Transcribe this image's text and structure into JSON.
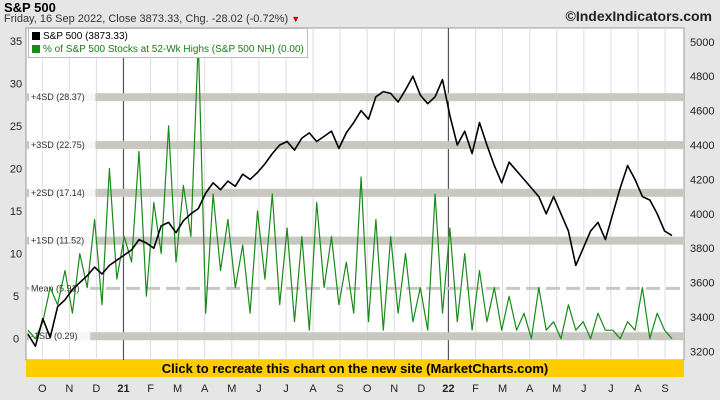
{
  "header": {
    "title": "S&P 500",
    "subtitle": "Friday, 16 Sep 2022, Close 3873.33, Chg. -28.02 (-0.72%)",
    "down_marker": "▼",
    "site": "©IndexIndicators.com"
  },
  "legend": {
    "sp500": "S&P 500 (3873.33)",
    "nh": "% of S&P 500 Stocks at 52-Wk Highs (S&P 500 NH) (0.00)"
  },
  "banner": "Click to recreate this chart on the new site (MarketCharts.com)",
  "colors": {
    "sp500": "#000000",
    "nh": "#1a8a1a",
    "banner": "#ffcc00",
    "band": "#c8c8c0"
  },
  "chart_data": {
    "type": "line",
    "x_labels": [
      "O",
      "N",
      "D",
      "21",
      "F",
      "M",
      "A",
      "M",
      "J",
      "J",
      "A",
      "S",
      "O",
      "N",
      "D",
      "22",
      "F",
      "M",
      "A",
      "M",
      "J",
      "J",
      "A",
      "S"
    ],
    "y_left": {
      "ticks": [
        0,
        5,
        10,
        15,
        20,
        25,
        30,
        35
      ],
      "range": [
        -2.5,
        36.5
      ]
    },
    "y_right": {
      "ticks": [
        3200,
        3400,
        3600,
        3800,
        4000,
        4200,
        4400,
        4600,
        4800,
        5000
      ],
      "range": [
        3150,
        5080
      ]
    },
    "sd_lines": [
      {
        "label": "+4SD (28.37)",
        "value": 28.37
      },
      {
        "label": "+3SD (22.75)",
        "value": 22.75
      },
      {
        "label": "+2SD (17.14)",
        "value": 17.14
      },
      {
        "label": "+1SD (11.52)",
        "value": 11.52
      },
      {
        "label": "Mean (5.91)",
        "value": 5.91
      },
      {
        "label": "-1SD (0.29)",
        "value": 0.29
      }
    ],
    "series": [
      {
        "name": "S&P 500",
        "axis": "right",
        "values": [
          3300,
          3230,
          3390,
          3280,
          3460,
          3500,
          3560,
          3600,
          3640,
          3690,
          3650,
          3700,
          3730,
          3760,
          3790,
          3850,
          3830,
          3800,
          3930,
          3950,
          3890,
          3960,
          4000,
          4030,
          4120,
          4180,
          4140,
          4190,
          4160,
          4230,
          4200,
          4240,
          4290,
          4350,
          4400,
          4420,
          4370,
          4440,
          4470,
          4420,
          4450,
          4480,
          4380,
          4470,
          4530,
          4600,
          4550,
          4680,
          4710,
          4700,
          4650,
          4720,
          4800,
          4690,
          4640,
          4680,
          4780,
          4570,
          4400,
          4480,
          4350,
          4530,
          4400,
          4280,
          4180,
          4300,
          4250,
          4200,
          4150,
          4100,
          4000,
          4100,
          4000,
          3900,
          3700,
          3800,
          3900,
          3950,
          3850,
          4000,
          4150,
          4280,
          4200,
          4100,
          4080,
          4000,
          3900,
          3873
        ]
      },
      {
        "name": "% of S&P 500 Stocks at 52-Wk Highs",
        "axis": "left",
        "values": [
          1,
          0,
          2,
          6,
          4,
          8,
          3,
          10,
          6,
          14,
          4,
          20,
          7,
          12,
          9,
          22,
          5,
          16,
          10,
          25,
          9,
          18,
          12,
          35,
          3,
          17,
          8,
          14,
          6,
          11,
          3,
          15,
          7,
          17,
          4,
          13,
          2,
          12,
          1,
          16,
          6,
          12,
          4,
          9,
          3,
          19,
          2,
          14,
          1,
          12,
          3,
          10,
          2,
          6,
          1,
          17,
          3,
          13,
          2,
          10,
          1,
          8,
          2,
          6,
          1,
          5,
          1,
          3,
          0,
          6,
          1,
          2,
          0,
          4,
          1,
          2,
          0,
          3,
          1,
          1,
          0,
          2,
          1,
          6,
          0,
          3,
          1,
          0
        ]
      }
    ]
  }
}
